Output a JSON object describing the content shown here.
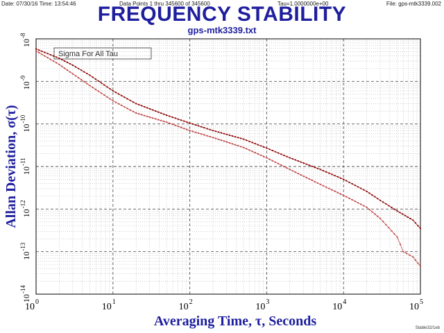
{
  "header": {
    "date": "Date: 07/30/16  Time: 13:54:46",
    "points": "Data Points 1 thru 345600 of 345600",
    "tau": "Tau=1.0000000e+00",
    "file": "File: gps-mtk3339.002"
  },
  "title": "FREQUENCY STABILITY",
  "subtitle": "gps-mtk3339.txt",
  "footer": "Stable32/1eb",
  "colors": {
    "title": "#1e1e9e",
    "axis_label": "#1e1e9e",
    "series": "#8b0000",
    "grid": "#b0b0b0"
  },
  "chart_data": {
    "type": "scatter",
    "xlabel": "Averaging Time, τ, Seconds",
    "ylabel": "Allan Deviation, σ(τ)",
    "x_scale": "log",
    "y_scale": "log",
    "xlim": [
      1,
      100000
    ],
    "ylim": [
      1e-14,
      1e-08
    ],
    "xticks": [
      {
        "base": "10",
        "exp": "0"
      },
      {
        "base": "10",
        "exp": "1"
      },
      {
        "base": "10",
        "exp": "2"
      },
      {
        "base": "10",
        "exp": "3"
      },
      {
        "base": "10",
        "exp": "4"
      },
      {
        "base": "10",
        "exp": "5"
      }
    ],
    "yticks": [
      {
        "base": "10",
        "exp": "-8"
      },
      {
        "base": "10",
        "exp": "-9"
      },
      {
        "base": "10",
        "exp": "-10"
      },
      {
        "base": "10",
        "exp": "-11"
      },
      {
        "base": "10",
        "exp": "-12"
      },
      {
        "base": "10",
        "exp": "-13"
      },
      {
        "base": "10",
        "exp": "-14"
      }
    ],
    "grid": true,
    "annotation": "Sigma For All Tau",
    "series": [
      {
        "points": [
          [
            1,
            5.2e-09
          ],
          [
            2,
            2.5e-09
          ],
          [
            3,
            1.5e-09
          ],
          [
            5,
            8e-10
          ],
          [
            10,
            3.5e-10
          ],
          [
            20,
            1.8e-10
          ],
          [
            50,
            1.1e-10
          ],
          [
            100,
            7e-11
          ],
          [
            200,
            4.8e-11
          ],
          [
            500,
            2.8e-11
          ],
          [
            1000,
            1.6e-11
          ],
          [
            2000,
            8.5e-12
          ],
          [
            5000,
            3.8e-12
          ],
          [
            10000,
            2.1e-12
          ],
          [
            20000,
            1.1e-12
          ],
          [
            30000,
            6e-13
          ],
          [
            50000,
            2.2e-13
          ],
          [
            60000,
            1e-13
          ],
          [
            80000,
            7.5e-14
          ],
          [
            100000,
            4.5e-14
          ]
        ],
        "color": "#c04040"
      },
      {
        "points": [
          [
            1,
            5.8e-09
          ],
          [
            2,
            3.5e-09
          ],
          [
            3,
            2.4e-09
          ],
          [
            5,
            1.4e-09
          ],
          [
            10,
            6e-10
          ],
          [
            20,
            3e-10
          ],
          [
            50,
            1.6e-10
          ],
          [
            100,
            1.05e-10
          ],
          [
            200,
            7e-11
          ],
          [
            500,
            4.4e-11
          ],
          [
            1000,
            2.7e-11
          ],
          [
            2000,
            1.6e-11
          ],
          [
            5000,
            8.5e-12
          ],
          [
            10000,
            5e-12
          ],
          [
            20000,
            2.6e-12
          ],
          [
            30000,
            1.6e-12
          ],
          [
            50000,
            9e-13
          ],
          [
            80000,
            5.5e-13
          ],
          [
            100000,
            3.5e-13
          ]
        ],
        "color": "#8b0000"
      }
    ]
  }
}
